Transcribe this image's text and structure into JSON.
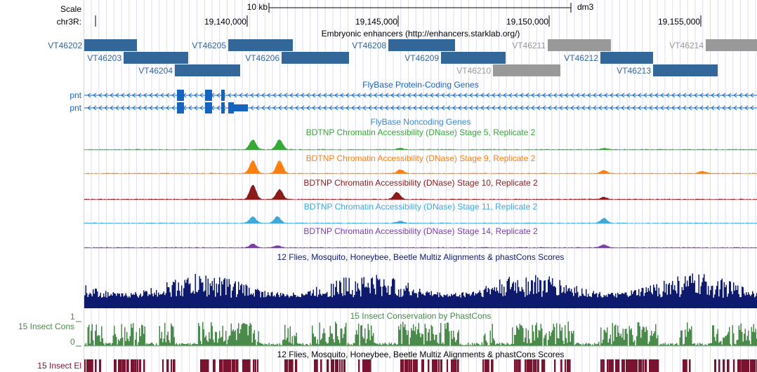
{
  "ruler": {
    "scale_label": "Scale",
    "scale_bar_label": "10 kb",
    "assembly": "dm3",
    "chrom_label": "chr3R:",
    "ticks": [
      "19,140,000",
      "19,145,000",
      "19,150,000",
      "19,155,000"
    ]
  },
  "tracks": {
    "enhancers": {
      "title": "Embryonic enhancers (http://enhancers.starklab.org/)",
      "color": "#336699",
      "inactive_color": "#999999",
      "items": [
        {
          "name": "VT46202",
          "active": true
        },
        {
          "name": "VT46203",
          "active": true
        },
        {
          "name": "VT46204",
          "active": true
        },
        {
          "name": "VT46205",
          "active": true
        },
        {
          "name": "VT46206",
          "active": true
        },
        {
          "name": "VT46208",
          "active": true
        },
        {
          "name": "VT46209",
          "active": true
        },
        {
          "name": "VT46210",
          "active": false
        },
        {
          "name": "VT46211",
          "active": false
        },
        {
          "name": "VT46212",
          "active": true
        },
        {
          "name": "VT46213",
          "active": true
        },
        {
          "name": "VT46214",
          "active": false
        }
      ]
    },
    "protein_genes": {
      "title": "FlyBase Protein-Coding Genes",
      "genes": [
        "pnt",
        "pnt"
      ],
      "color": "#1565c0"
    },
    "noncoding_genes": {
      "title": "FlyBase Noncoding Genes"
    },
    "dnase": [
      {
        "title": "BDTNP Chromatin Accessibility (DNase) Stage 5, Replicate 2",
        "color": "#33aa33"
      },
      {
        "title": "BDTNP Chromatin Accessibility (DNase) Stage 9, Replicate 2",
        "color": "#ff7f0e"
      },
      {
        "title": "BDTNP Chromatin Accessibility (DNase) Stage 10, Replicate 2",
        "color": "#8b1a1a"
      },
      {
        "title": "BDTNP Chromatin Accessibility (DNase) Stage 11, Replicate 2",
        "color": "#3fa9d9"
      },
      {
        "title": "BDTNP Chromatin Accessibility (DNase) Stage 14, Replicate 2",
        "color": "#7a3fa6"
      }
    ],
    "multiz": {
      "title": "12 Flies, Mosquito, Honeybee, Beetle Multiz Alignments & phastCons Scores",
      "color": "#0d1a6e"
    },
    "phastcons": {
      "title": "15 Insect Conservation by PhastCons",
      "label": "15 Insect Cons",
      "y_max": "1",
      "y_min": "0",
      "color": "#4a8a4a"
    },
    "elements": {
      "title": "12 Flies, Mosquito, Honeybee, Beetle Multiz Alignments & phastCons Scores",
      "label": "15 Insect El",
      "color": "#7a1330"
    }
  }
}
